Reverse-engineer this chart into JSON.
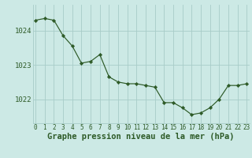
{
  "x": [
    0,
    1,
    2,
    3,
    4,
    5,
    6,
    7,
    8,
    9,
    10,
    11,
    12,
    13,
    14,
    15,
    16,
    17,
    18,
    19,
    20,
    21,
    22,
    23
  ],
  "y": [
    1024.3,
    1024.35,
    1024.3,
    1023.85,
    1023.55,
    1023.05,
    1023.1,
    1023.3,
    1022.65,
    1022.5,
    1022.45,
    1022.45,
    1022.4,
    1022.35,
    1021.9,
    1021.9,
    1021.75,
    1021.55,
    1021.6,
    1021.75,
    1022.0,
    1022.4,
    1022.4,
    1022.45
  ],
  "line_color": "#2d5a27",
  "marker_color": "#2d5a27",
  "bg_color": "#cce9e5",
  "grid_color": "#a8ccc8",
  "xlabel": "Graphe pression niveau de la mer (hPa)",
  "xlabel_fontsize": 7.5,
  "tick_label_color": "#2d5a27",
  "tick_fontsize": 5.5,
  "ytick_fontsize": 6.5,
  "ylim": [
    1021.3,
    1024.75
  ],
  "yticks": [
    1022,
    1023,
    1024
  ],
  "xlim": [
    -0.3,
    23.3
  ]
}
